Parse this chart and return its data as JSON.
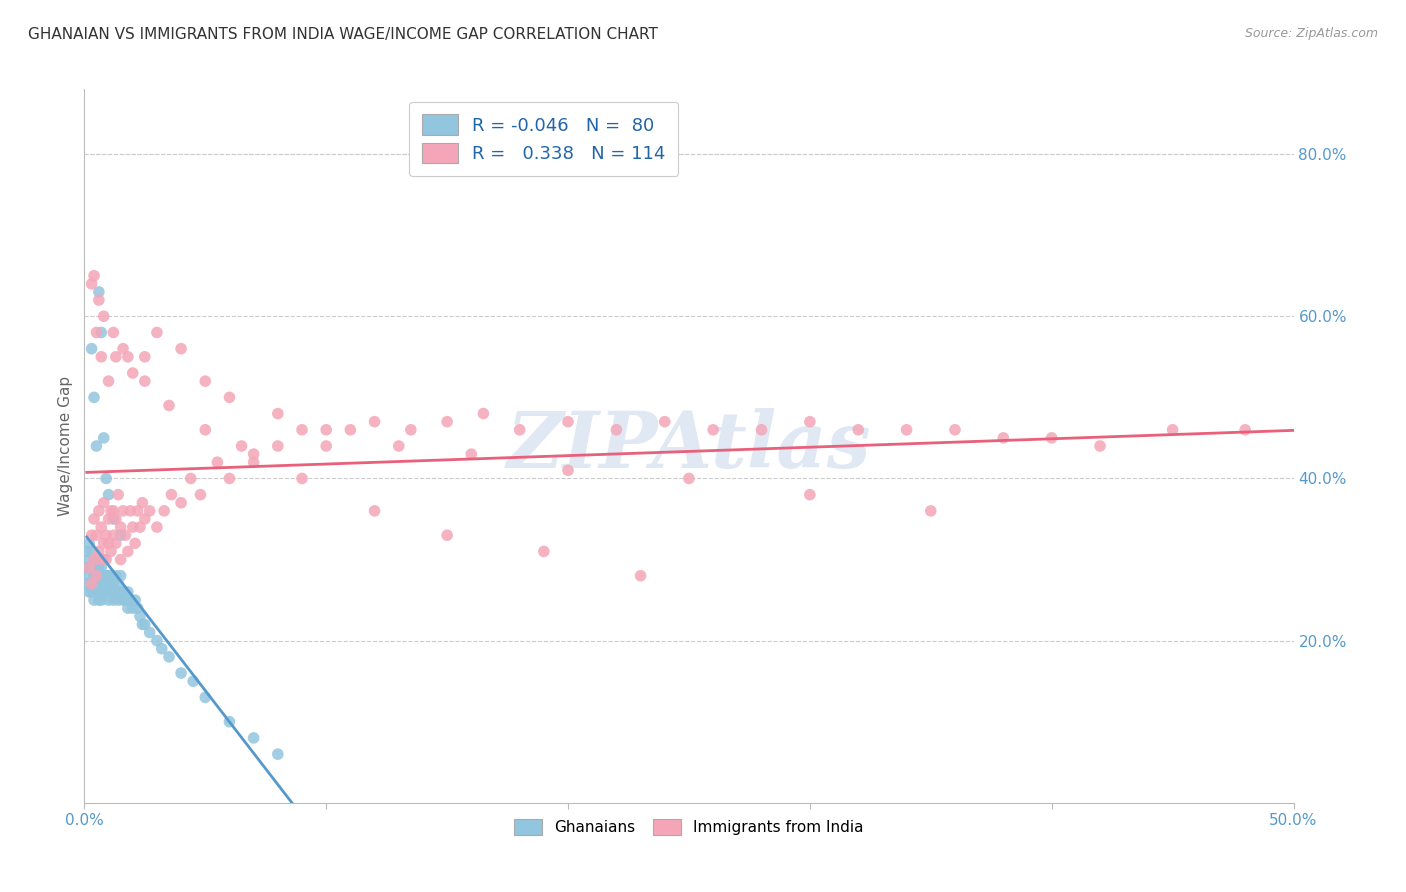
{
  "title": "GHANAIAN VS IMMIGRANTS FROM INDIA WAGE/INCOME GAP CORRELATION CHART",
  "source": "Source: ZipAtlas.com",
  "ylabel": "Wage/Income Gap",
  "ylabel_right_ticks": [
    "80.0%",
    "60.0%",
    "40.0%",
    "20.0%"
  ],
  "ylabel_right_vals": [
    0.8,
    0.6,
    0.4,
    0.2
  ],
  "watermark": "ZIPAtlas",
  "blue_color": "#92c5de",
  "pink_color": "#f4a6b8",
  "blue_line_color": "#5599cc",
  "pink_line_color": "#e8607a",
  "background": "#ffffff",
  "grid_color": "#cccccc",
  "xlim": [
    0.0,
    0.5
  ],
  "ylim": [
    0.0,
    0.88
  ],
  "ghanaians_x": [
    0.001,
    0.001,
    0.001,
    0.002,
    0.002,
    0.002,
    0.002,
    0.003,
    0.003,
    0.003,
    0.003,
    0.004,
    0.004,
    0.004,
    0.004,
    0.005,
    0.005,
    0.005,
    0.005,
    0.006,
    0.006,
    0.006,
    0.006,
    0.007,
    0.007,
    0.007,
    0.007,
    0.008,
    0.008,
    0.008,
    0.008,
    0.009,
    0.009,
    0.009,
    0.01,
    0.01,
    0.01,
    0.011,
    0.011,
    0.011,
    0.012,
    0.012,
    0.013,
    0.013,
    0.014,
    0.014,
    0.015,
    0.015,
    0.016,
    0.016,
    0.017,
    0.018,
    0.018,
    0.019,
    0.02,
    0.021,
    0.022,
    0.023,
    0.024,
    0.025,
    0.027,
    0.03,
    0.032,
    0.035,
    0.04,
    0.045,
    0.05,
    0.06,
    0.07,
    0.08,
    0.003,
    0.004,
    0.005,
    0.006,
    0.007,
    0.008,
    0.009,
    0.01,
    0.012,
    0.015
  ],
  "ghanaians_y": [
    0.27,
    0.29,
    0.31,
    0.26,
    0.28,
    0.3,
    0.32,
    0.27,
    0.29,
    0.31,
    0.26,
    0.28,
    0.3,
    0.25,
    0.27,
    0.26,
    0.28,
    0.3,
    0.27,
    0.25,
    0.27,
    0.29,
    0.26,
    0.27,
    0.28,
    0.29,
    0.25,
    0.26,
    0.27,
    0.28,
    0.3,
    0.26,
    0.28,
    0.27,
    0.25,
    0.27,
    0.28,
    0.26,
    0.28,
    0.27,
    0.25,
    0.27,
    0.26,
    0.28,
    0.25,
    0.27,
    0.26,
    0.28,
    0.25,
    0.26,
    0.25,
    0.24,
    0.26,
    0.25,
    0.24,
    0.25,
    0.24,
    0.23,
    0.22,
    0.22,
    0.21,
    0.2,
    0.19,
    0.18,
    0.16,
    0.15,
    0.13,
    0.1,
    0.08,
    0.06,
    0.56,
    0.5,
    0.44,
    0.63,
    0.58,
    0.45,
    0.4,
    0.38,
    0.35,
    0.33
  ],
  "india_x": [
    0.002,
    0.003,
    0.003,
    0.004,
    0.004,
    0.005,
    0.005,
    0.006,
    0.006,
    0.007,
    0.007,
    0.008,
    0.008,
    0.009,
    0.009,
    0.01,
    0.01,
    0.011,
    0.011,
    0.012,
    0.012,
    0.013,
    0.013,
    0.014,
    0.015,
    0.015,
    0.016,
    0.017,
    0.018,
    0.019,
    0.02,
    0.021,
    0.022,
    0.023,
    0.024,
    0.025,
    0.027,
    0.03,
    0.033,
    0.036,
    0.04,
    0.044,
    0.048,
    0.055,
    0.06,
    0.065,
    0.07,
    0.08,
    0.09,
    0.1,
    0.11,
    0.12,
    0.135,
    0.15,
    0.165,
    0.18,
    0.2,
    0.22,
    0.24,
    0.26,
    0.28,
    0.3,
    0.32,
    0.34,
    0.36,
    0.38,
    0.4,
    0.42,
    0.45,
    0.48,
    0.003,
    0.005,
    0.007,
    0.01,
    0.013,
    0.016,
    0.02,
    0.025,
    0.03,
    0.04,
    0.05,
    0.06,
    0.08,
    0.1,
    0.13,
    0.16,
    0.2,
    0.25,
    0.3,
    0.35,
    0.004,
    0.006,
    0.008,
    0.012,
    0.018,
    0.025,
    0.035,
    0.05,
    0.07,
    0.09,
    0.12,
    0.15,
    0.19,
    0.23
  ],
  "india_y": [
    0.29,
    0.27,
    0.33,
    0.3,
    0.35,
    0.28,
    0.33,
    0.31,
    0.36,
    0.3,
    0.34,
    0.32,
    0.37,
    0.3,
    0.33,
    0.32,
    0.35,
    0.31,
    0.36,
    0.33,
    0.36,
    0.32,
    0.35,
    0.38,
    0.3,
    0.34,
    0.36,
    0.33,
    0.31,
    0.36,
    0.34,
    0.32,
    0.36,
    0.34,
    0.37,
    0.35,
    0.36,
    0.34,
    0.36,
    0.38,
    0.37,
    0.4,
    0.38,
    0.42,
    0.4,
    0.44,
    0.42,
    0.44,
    0.46,
    0.44,
    0.46,
    0.47,
    0.46,
    0.47,
    0.48,
    0.46,
    0.47,
    0.46,
    0.47,
    0.46,
    0.46,
    0.47,
    0.46,
    0.46,
    0.46,
    0.45,
    0.45,
    0.44,
    0.46,
    0.46,
    0.64,
    0.58,
    0.55,
    0.52,
    0.55,
    0.56,
    0.53,
    0.55,
    0.58,
    0.56,
    0.52,
    0.5,
    0.48,
    0.46,
    0.44,
    0.43,
    0.41,
    0.4,
    0.38,
    0.36,
    0.65,
    0.62,
    0.6,
    0.58,
    0.55,
    0.52,
    0.49,
    0.46,
    0.43,
    0.4,
    0.36,
    0.33,
    0.31,
    0.28
  ]
}
